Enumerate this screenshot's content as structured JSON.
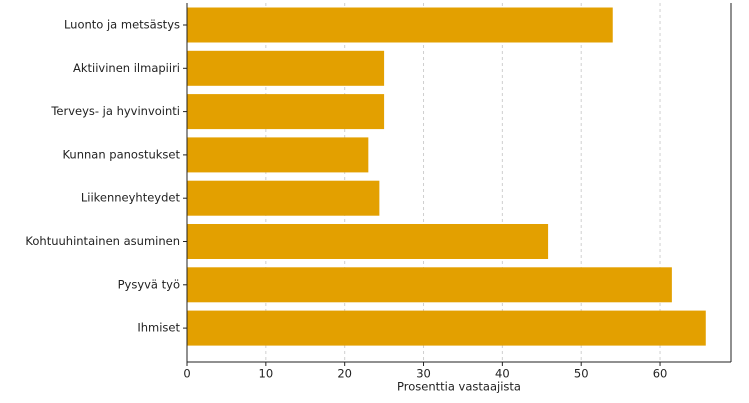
{
  "chart_data": {
    "type": "barh",
    "categories": [
      "Luonto ja metsästys",
      "Aktiivinen ilmapiiri",
      "Terveys- ja hyvinvointi",
      "Kunnan panostukset",
      "Liikenneyhteydet",
      "Kohtuuhintainen asuminen",
      "Pysyvä työ",
      "Ihmiset"
    ],
    "values": [
      54.0,
      25.0,
      25.0,
      23.0,
      24.4,
      45.8,
      61.5,
      65.8
    ],
    "color": "#e3a000",
    "xlabel": "Prosenttia vastaajista",
    "xlim": [
      0,
      69
    ],
    "xticks": [
      0,
      10,
      20,
      30,
      40,
      50,
      60
    ],
    "grid": true
  }
}
